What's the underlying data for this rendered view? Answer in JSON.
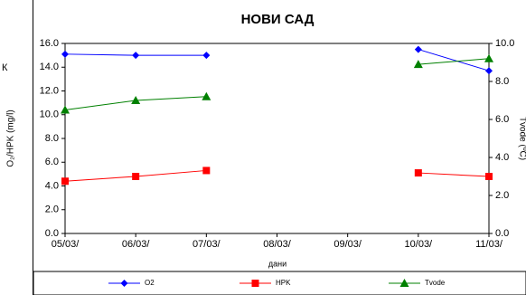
{
  "chart_data": {
    "type": "line",
    "title": "НОВИ САД",
    "annotation": "К",
    "x_label": "дани",
    "y_label": "O₂/HPK (mg/l)",
    "y2_label": "Tvode (ºC)",
    "categories": [
      "05/03/",
      "06/03/",
      "07/03/",
      "08/03/",
      "09/03/",
      "10/03/",
      "11/03/"
    ],
    "series": [
      {
        "name": "O2",
        "color": "#0000ff",
        "marker": "diamond",
        "values": [
          15.1,
          15.0,
          15.0,
          null,
          null,
          15.5,
          13.7
        ]
      },
      {
        "name": "HPK",
        "color": "#ff0000",
        "marker": "square",
        "values": [
          4.4,
          4.8,
          5.3,
          null,
          null,
          5.1,
          4.8
        ]
      },
      {
        "name": "Tvode",
        "color": "#008000",
        "marker": "triangle",
        "axis": "y2",
        "values": [
          6.5,
          7.0,
          7.2,
          null,
          null,
          8.9,
          9.2
        ]
      }
    ],
    "ylim": [
      0,
      16
    ],
    "yticks": [
      {
        "value": 0,
        "label": "0.0"
      },
      {
        "value": 2,
        "label": "2.0"
      },
      {
        "value": 4,
        "label": "4.0"
      },
      {
        "value": 6,
        "label": "6.0"
      },
      {
        "value": 8,
        "label": "8.0"
      },
      {
        "value": 10,
        "label": "10.0"
      },
      {
        "value": 12,
        "label": "12.0"
      },
      {
        "value": 14,
        "label": "14.0"
      },
      {
        "value": 16,
        "label": "16.0"
      }
    ],
    "y2lim": [
      0,
      10
    ],
    "y2ticks": [
      {
        "value": 0,
        "label": "0.0"
      },
      {
        "value": 2,
        "label": "2.0"
      },
      {
        "value": 4,
        "label": "4.0"
      },
      {
        "value": 6,
        "label": "6.0"
      },
      {
        "value": 8,
        "label": "8.0"
      },
      {
        "value": 10,
        "label": "10.0"
      }
    ],
    "grid": false,
    "legend": "bottom"
  }
}
